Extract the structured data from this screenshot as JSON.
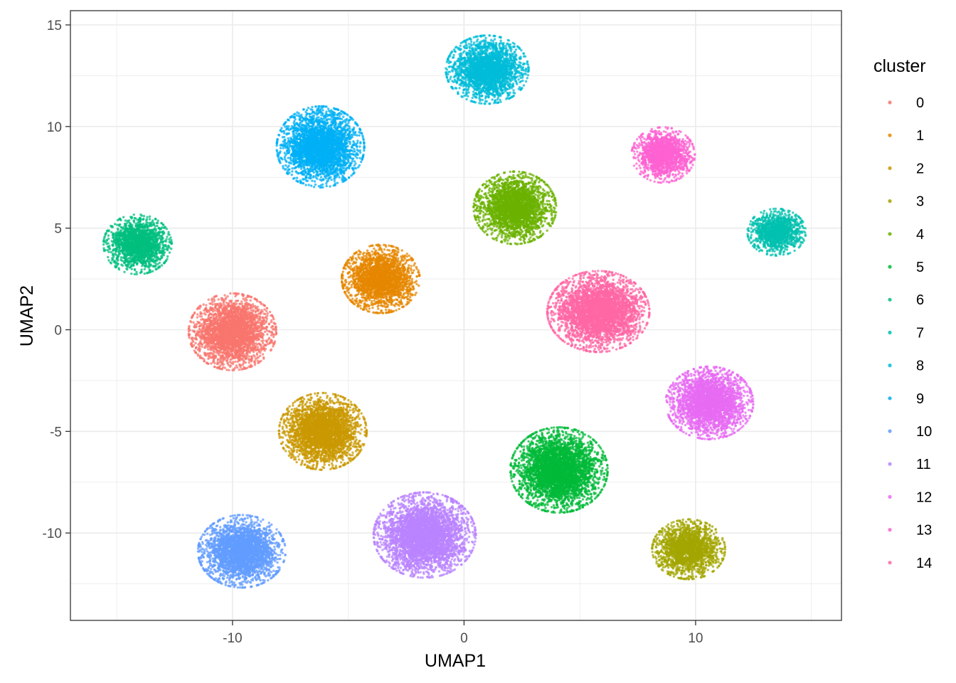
{
  "chart_data": {
    "type": "scatter",
    "title": "",
    "xlabel": "UMAP1",
    "ylabel": "UMAP2",
    "xlim": [
      -17,
      16.3
    ],
    "ylim": [
      -14.3,
      15.7
    ],
    "x_ticks": [
      -10,
      0,
      10
    ],
    "x_tick_labels": [
      "-10",
      "0",
      "10"
    ],
    "y_ticks": [
      -10,
      -5,
      0,
      5,
      10,
      15
    ],
    "y_tick_labels": [
      "-10",
      "-5",
      "0",
      "5",
      "10",
      "15"
    ],
    "grid": true,
    "legend": {
      "title": "cluster",
      "position": "right"
    },
    "series": [
      {
        "name": "0",
        "color": "#F8766D",
        "center": [
          -10.0,
          -0.1
        ],
        "spread": [
          1.8,
          1.8
        ]
      },
      {
        "name": "1",
        "color": "#E58700",
        "center": [
          -3.6,
          2.5
        ],
        "spread": [
          1.6,
          1.6
        ]
      },
      {
        "name": "2",
        "color": "#C99800",
        "center": [
          -6.1,
          -5.0
        ],
        "spread": [
          1.8,
          1.8
        ]
      },
      {
        "name": "3",
        "color": "#A3A500",
        "center": [
          9.7,
          -10.8
        ],
        "spread": [
          1.5,
          1.4
        ]
      },
      {
        "name": "4",
        "color": "#6BB100",
        "center": [
          2.2,
          6.0
        ],
        "spread": [
          1.7,
          1.7
        ]
      },
      {
        "name": "5",
        "color": "#00BA38",
        "center": [
          4.1,
          -6.9
        ],
        "spread": [
          2.0,
          2.0
        ]
      },
      {
        "name": "6",
        "color": "#00BF7D",
        "center": [
          -14.1,
          4.2
        ],
        "spread": [
          1.4,
          1.4
        ]
      },
      {
        "name": "7",
        "color": "#00C0AF",
        "center": [
          13.5,
          4.8
        ],
        "spread": [
          1.2,
          1.1
        ]
      },
      {
        "name": "8",
        "color": "#00BCD8",
        "center": [
          1.0,
          12.8
        ],
        "spread": [
          1.7,
          1.6
        ]
      },
      {
        "name": "9",
        "color": "#00B0F6",
        "center": [
          -6.2,
          9.0
        ],
        "spread": [
          1.8,
          1.9
        ]
      },
      {
        "name": "10",
        "color": "#619CFF",
        "center": [
          -9.6,
          -10.9
        ],
        "spread": [
          1.8,
          1.7
        ]
      },
      {
        "name": "11",
        "color": "#B983FF",
        "center": [
          -1.7,
          -10.1
        ],
        "spread": [
          2.1,
          2.0
        ]
      },
      {
        "name": "12",
        "color": "#E76BF3",
        "center": [
          10.6,
          -3.6
        ],
        "spread": [
          1.8,
          1.7
        ]
      },
      {
        "name": "13",
        "color": "#FD61D1",
        "center": [
          8.6,
          8.6
        ],
        "spread": [
          1.3,
          1.3
        ]
      },
      {
        "name": "14",
        "color": "#FF67A4",
        "center": [
          5.8,
          0.9
        ],
        "spread": [
          2.1,
          1.9
        ]
      }
    ]
  }
}
